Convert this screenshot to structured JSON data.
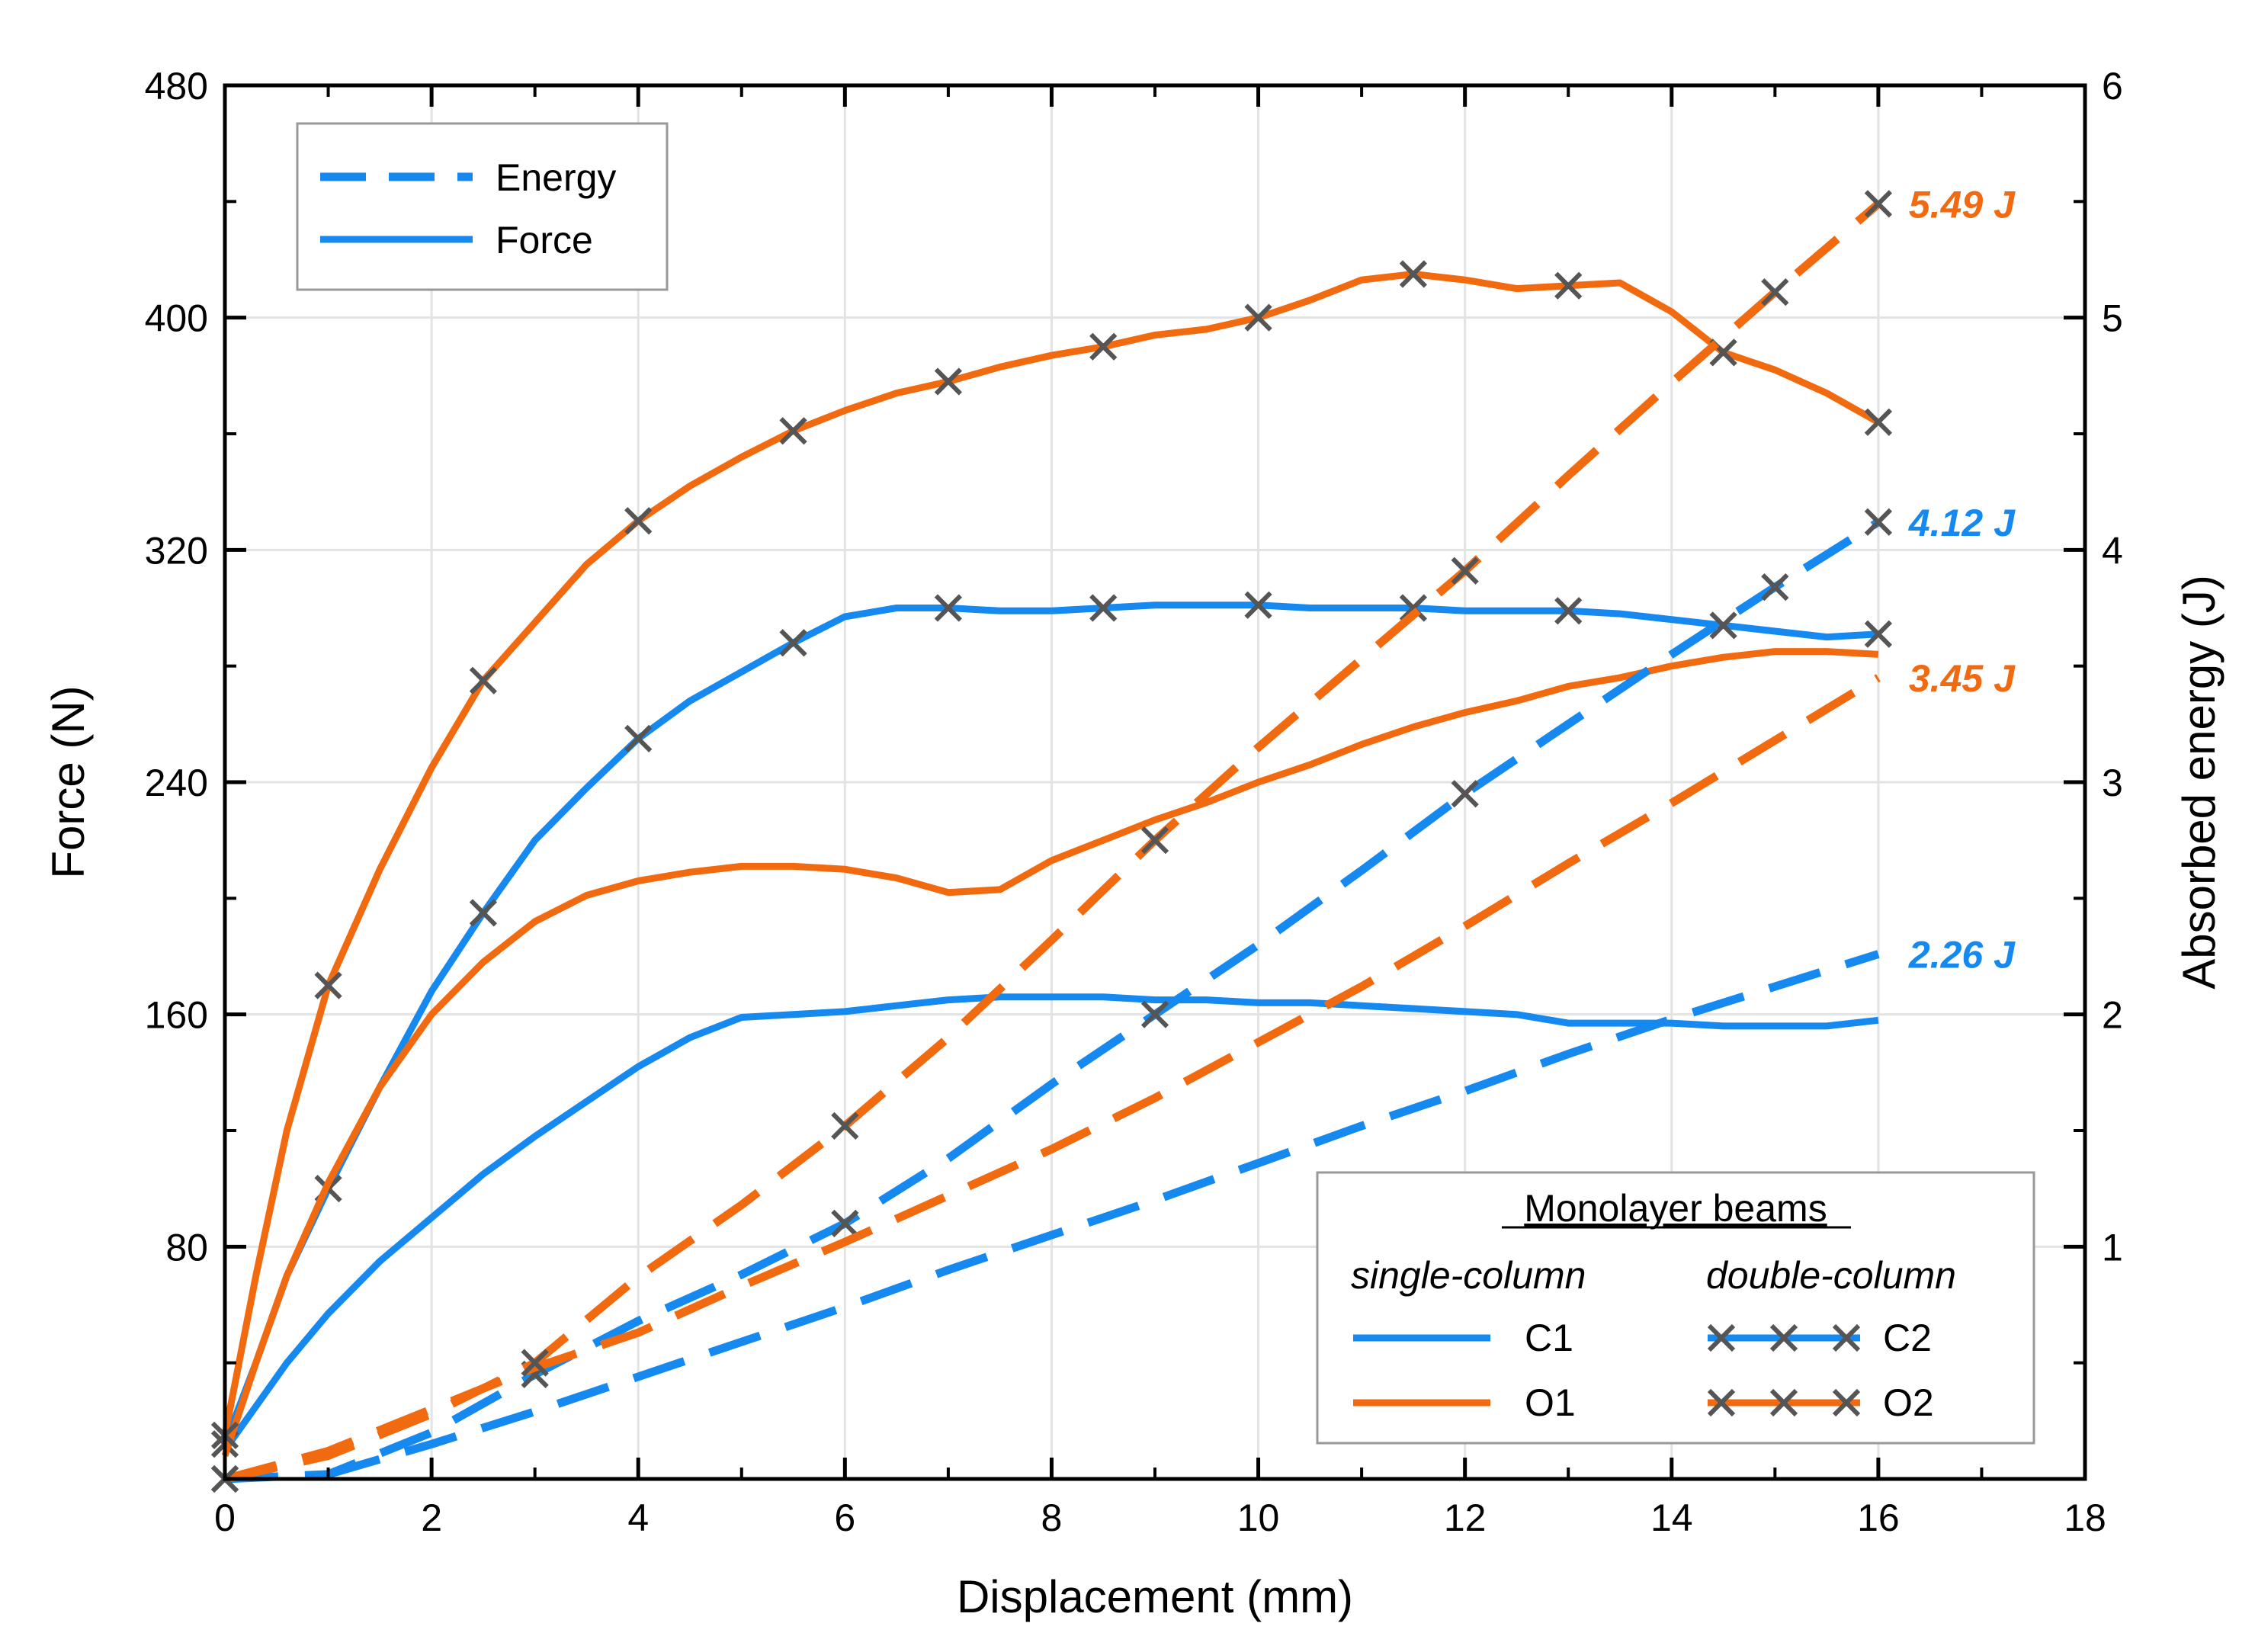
{
  "chart_data": {
    "type": "line",
    "xlabel": "Displacement (mm)",
    "ylabel": "Force (N)",
    "y2label": "Absorbed energy (J)",
    "xlim": [
      0,
      18
    ],
    "ylim": [
      0,
      480
    ],
    "y2lim": [
      0,
      6
    ],
    "xticks": [
      0,
      2,
      4,
      6,
      8,
      10,
      12,
      14,
      16,
      18
    ],
    "yticks": [
      80,
      160,
      240,
      320,
      400,
      480
    ],
    "y2ticks": [
      1,
      2,
      3,
      4,
      5,
      6
    ],
    "grid": true,
    "colors": {
      "blue": "#1589f0",
      "orange": "#f26a10",
      "marker": "#555555"
    },
    "style_legend": {
      "position": "top-left",
      "items": [
        {
          "label": "Energy",
          "dash": true
        },
        {
          "label": "Force",
          "dash": false
        }
      ]
    },
    "beam_legend": {
      "position": "bottom-right",
      "title": "Monolayer beams",
      "col1": "single-column",
      "col2": "double-column",
      "items": [
        {
          "label": "C1",
          "color": "blue",
          "markers": false
        },
        {
          "label": "O1",
          "color": "orange",
          "markers": false
        },
        {
          "label": "C2",
          "color": "blue",
          "markers": true
        },
        {
          "label": "O2",
          "color": "orange",
          "markers": true
        }
      ]
    },
    "annotations": [
      {
        "text": "5.49 J",
        "color": "orange",
        "x": 16,
        "y2": 5.49
      },
      {
        "text": "4.12 J",
        "color": "blue",
        "x": 16,
        "y2": 4.12
      },
      {
        "text": "3.45 J",
        "color": "orange",
        "x": 16,
        "y2": 3.45
      },
      {
        "text": "2.26 J",
        "color": "blue",
        "x": 16,
        "y2": 2.26
      }
    ],
    "series": [
      {
        "name": "C1",
        "kind": "force",
        "color": "blue",
        "markers": false,
        "x": [
          0,
          0.3,
          0.6,
          1,
          1.5,
          2,
          2.5,
          3,
          3.5,
          4,
          4.5,
          5,
          5.5,
          6,
          6.5,
          7,
          7.5,
          8,
          8.5,
          9,
          9.5,
          10,
          10.5,
          11,
          11.5,
          12,
          12.5,
          13,
          13.5,
          14,
          14.5,
          15,
          15.5,
          16
        ],
        "y": [
          10,
          25,
          40,
          57,
          75,
          90,
          105,
          118,
          130,
          142,
          152,
          159,
          160,
          161,
          163,
          165,
          166,
          166,
          166,
          165,
          165,
          164,
          164,
          163,
          162,
          161,
          160,
          157,
          157,
          157,
          156,
          156,
          156,
          158
        ]
      },
      {
        "name": "C2",
        "kind": "force",
        "color": "blue",
        "markers": true,
        "x": [
          0,
          0.3,
          0.6,
          1,
          1.5,
          2,
          2.5,
          3,
          3.5,
          4,
          4.5,
          5,
          5.5,
          6,
          6.5,
          7,
          7.5,
          8,
          8.5,
          9,
          9.5,
          10,
          10.5,
          11,
          11.5,
          12,
          12.5,
          13,
          13.5,
          14,
          14.5,
          15,
          15.5,
          16
        ],
        "y": [
          12,
          40,
          70,
          100,
          135,
          168,
          195,
          220,
          238,
          255,
          268,
          278,
          288,
          297,
          300,
          300,
          299,
          299,
          300,
          301,
          301,
          301,
          300,
          300,
          300,
          299,
          299,
          299,
          298,
          296,
          294,
          292,
          290,
          291
        ]
      },
      {
        "name": "O1",
        "kind": "force",
        "color": "orange",
        "markers": false,
        "x": [
          0,
          0.3,
          0.6,
          1,
          1.5,
          2,
          2.5,
          3,
          3.5,
          4,
          4.5,
          5,
          5.5,
          6,
          6.5,
          7,
          7.5,
          8,
          8.5,
          9,
          9.5,
          10,
          10.5,
          11,
          11.5,
          12,
          12.5,
          13,
          13.5,
          14,
          14.5,
          15,
          15.5,
          16
        ],
        "y": [
          8,
          40,
          70,
          102,
          135,
          160,
          178,
          192,
          201,
          206,
          209,
          211,
          211,
          210,
          207,
          202,
          203,
          213,
          220,
          227,
          233,
          240,
          246,
          253,
          259,
          264,
          268,
          273,
          276,
          280,
          283,
          285,
          285,
          284
        ]
      },
      {
        "name": "O2",
        "kind": "force",
        "color": "orange",
        "markers": true,
        "x": [
          0,
          0.3,
          0.6,
          1,
          1.5,
          2,
          2.5,
          3,
          3.5,
          4,
          4.5,
          5,
          5.5,
          6,
          6.5,
          7,
          7.5,
          8,
          8.5,
          9,
          9.5,
          10,
          10.5,
          11,
          11.5,
          12,
          12.5,
          13,
          13.5,
          14,
          14.5,
          15,
          15.5,
          16
        ],
        "y": [
          15,
          70,
          120,
          170,
          210,
          245,
          275,
          295,
          315,
          330,
          342,
          352,
          361,
          368,
          374,
          378,
          383,
          387,
          390,
          394,
          396,
          400,
          406,
          413,
          415,
          413,
          410,
          411,
          412,
          402,
          388,
          382,
          374,
          364
        ]
      },
      {
        "name": "C1",
        "kind": "energy",
        "color": "blue",
        "markers": false,
        "x": [
          1,
          2,
          3,
          4,
          5,
          6,
          7,
          8,
          9,
          10,
          11,
          12,
          13,
          14,
          15,
          16
        ],
        "y2": [
          0.02,
          0.15,
          0.29,
          0.44,
          0.59,
          0.74,
          0.9,
          1.05,
          1.2,
          1.36,
          1.52,
          1.67,
          1.83,
          1.98,
          2.12,
          2.26
        ]
      },
      {
        "name": "C2",
        "kind": "energy",
        "color": "blue",
        "markers": true,
        "x": [
          0,
          1,
          2,
          3,
          4,
          5,
          6,
          7,
          8,
          9,
          10,
          11,
          12,
          13,
          14,
          15,
          16
        ],
        "y2": [
          0,
          0.02,
          0.2,
          0.45,
          0.68,
          0.88,
          1.1,
          1.38,
          1.7,
          2.0,
          2.3,
          2.62,
          2.95,
          3.25,
          3.55,
          3.84,
          4.12
        ]
      },
      {
        "name": "O1",
        "kind": "energy",
        "color": "orange",
        "markers": false,
        "x": [
          0,
          1,
          2,
          3,
          4,
          5,
          6,
          7,
          8,
          9,
          10,
          11,
          12,
          13,
          14,
          15,
          16
        ],
        "y2": [
          0,
          0.12,
          0.3,
          0.48,
          0.63,
          0.83,
          1.02,
          1.22,
          1.42,
          1.64,
          1.88,
          2.12,
          2.38,
          2.65,
          2.91,
          3.18,
          3.45
        ]
      },
      {
        "name": "O2",
        "kind": "energy",
        "color": "orange",
        "markers": true,
        "x": [
          0,
          1,
          2,
          3,
          4,
          5,
          6,
          7,
          8,
          9,
          10,
          11,
          12,
          13,
          14,
          15,
          16
        ],
        "y2": [
          0,
          0.1,
          0.28,
          0.5,
          0.87,
          1.18,
          1.52,
          1.9,
          2.32,
          2.75,
          3.15,
          3.53,
          3.91,
          4.32,
          4.72,
          5.11,
          5.49
        ]
      }
    ]
  }
}
